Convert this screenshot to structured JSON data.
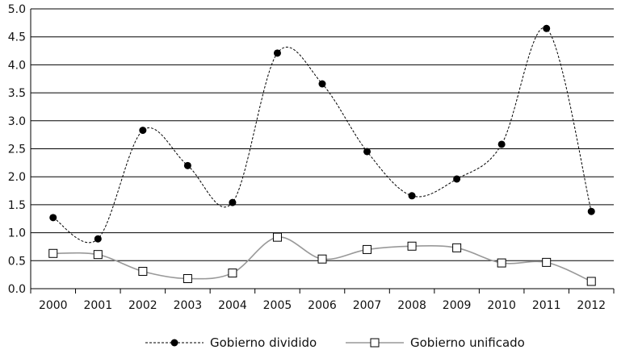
{
  "chart_data": {
    "type": "line",
    "x": [
      "2000",
      "2001",
      "2002",
      "2003",
      "2004",
      "2005",
      "2006",
      "2007",
      "2008",
      "2009",
      "2010",
      "2011",
      "2012"
    ],
    "ylim": [
      0,
      5
    ],
    "yticks": [
      "0.0",
      "0.5",
      "1.0",
      "1.5",
      "2.0",
      "2.5",
      "3.0",
      "3.5",
      "4.0",
      "4.5",
      "5.0"
    ],
    "grid": true,
    "legend_position": "bottom",
    "series": [
      {
        "name": "Gobierno dividido",
        "values": [
          1.27,
          0.89,
          2.83,
          2.2,
          1.54,
          4.21,
          3.66,
          2.45,
          1.66,
          1.96,
          2.58,
          4.65,
          1.38
        ],
        "color": "#000000",
        "marker": "filled-circle",
        "line": "dashed"
      },
      {
        "name": "Gobierno unificado",
        "values": [
          0.63,
          0.61,
          0.31,
          0.18,
          0.28,
          0.92,
          0.53,
          0.7,
          0.76,
          0.73,
          0.46,
          0.47,
          0.13
        ],
        "color": "#999999",
        "marker": "open-square",
        "line": "solid"
      }
    ]
  }
}
